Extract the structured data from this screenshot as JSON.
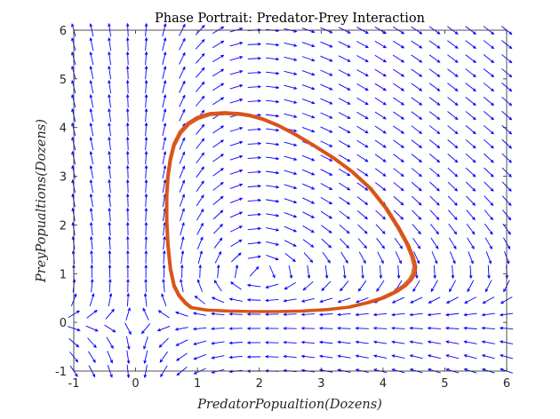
{
  "chart_data": {
    "type": "line",
    "subtype": "phase-portrait",
    "title": "Phase Portrait: Predator-Prey Interaction",
    "xlabel": "PredatorPopualtion(Dozens)",
    "ylabel": "PreyPopualtions(Dozens)",
    "xlim": [
      -1,
      6
    ],
    "ylim": [
      -1,
      6
    ],
    "xticks": [
      "-1",
      "0",
      "1",
      "2",
      "3",
      "4",
      "5",
      "6"
    ],
    "yticks": [
      "-1",
      "0",
      "1",
      "2",
      "3",
      "4",
      "5",
      "6"
    ],
    "grid": false,
    "legend": "none",
    "colors": {
      "field": "#0000ff",
      "trajectory": "#d95319",
      "axes": "#262626"
    },
    "vector_field": {
      "model": {
        "dx": "x*(y-1)",
        "dy": "y*(2-x)"
      },
      "x_range": [
        -1,
        6
      ],
      "y_range": [
        -1,
        6
      ],
      "count": 25,
      "normalized": true
    },
    "series": [
      {
        "x": [
          0.8,
          0.7,
          0.62,
          0.56,
          0.52,
          0.5,
          0.5,
          0.52,
          0.56,
          0.62,
          0.72,
          0.85,
          1.0,
          1.2,
          1.45,
          1.7,
          1.85,
          2.05,
          2.3,
          2.6,
          2.9,
          3.2,
          3.5,
          3.8,
          4.05,
          4.25,
          4.4,
          4.48,
          4.52,
          4.5,
          4.45,
          4.35,
          4.2,
          4.0,
          3.75,
          3.45,
          3.1,
          2.7,
          2.3,
          1.9,
          1.5,
          1.15,
          0.9,
          0.8
        ],
        "y": [
          0.4,
          0.55,
          0.75,
          1.1,
          1.6,
          2.1,
          2.6,
          3.0,
          3.35,
          3.65,
          3.9,
          4.08,
          4.2,
          4.28,
          4.3,
          4.28,
          4.25,
          4.18,
          4.05,
          3.85,
          3.62,
          3.38,
          3.1,
          2.75,
          2.35,
          1.95,
          1.6,
          1.35,
          1.15,
          1.0,
          0.88,
          0.75,
          0.62,
          0.5,
          0.4,
          0.31,
          0.26,
          0.23,
          0.22,
          0.22,
          0.23,
          0.25,
          0.3,
          0.4
        ]
      }
    ]
  }
}
